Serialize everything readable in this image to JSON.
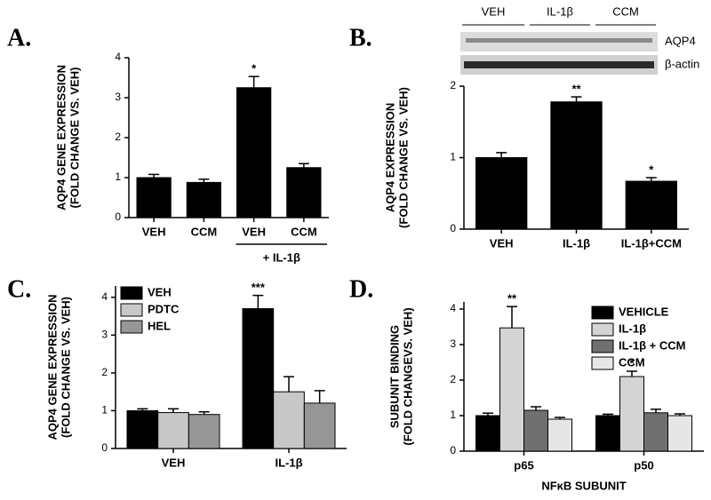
{
  "chart_data": [
    {
      "type": "bar",
      "panel": "A.",
      "ylabel": [
        "AQP4 GENE EXPRESSION",
        "(FOLD CHANGE VS. VEH)"
      ],
      "categories": [
        "VEH",
        "CCM",
        "VEH",
        "CCM"
      ],
      "values": [
        1.0,
        0.88,
        3.25,
        1.25
      ],
      "errors": [
        0.08,
        0.08,
        0.28,
        0.1
      ],
      "significance": [
        null,
        null,
        "*",
        null
      ],
      "group_label": "+ IL-1β",
      "color": "#000000",
      "ylim": [
        0,
        4
      ],
      "yticks": [
        0,
        1,
        2,
        3,
        4
      ]
    },
    {
      "type": "bar",
      "panel": "B.",
      "ylabel": [
        "AQP4 EXPRESSION",
        "(FOLD CHANGE VS. VEH)"
      ],
      "blot": {
        "lanes": [
          "VEH",
          "IL-1β",
          "CCM"
        ],
        "bands": [
          "AQP4",
          "β-actin"
        ]
      },
      "categories": [
        "VEH",
        "IL-1β",
        "IL-1β+CCM"
      ],
      "values": [
        1.0,
        1.78,
        0.67
      ],
      "errors": [
        0.07,
        0.07,
        0.05
      ],
      "significance": [
        null,
        "**",
        "*"
      ],
      "color": "#000000",
      "ylim": [
        0,
        2
      ],
      "yticks": [
        0,
        1,
        2
      ]
    },
    {
      "type": "grouped_bar",
      "panel": "C.",
      "ylabel": [
        "AQP4 GENE EXPRESSION",
        "(FOLD CHANGE VS. VEH)"
      ],
      "categories": [
        "VEH",
        "IL-1β"
      ],
      "series": [
        {
          "name": "VEH",
          "color": "#000000",
          "values": [
            1.0,
            3.7
          ],
          "errors": [
            0.05,
            0.35
          ],
          "significance": [
            null,
            "***"
          ]
        },
        {
          "name": "PDTC",
          "color": "#c8c8c8",
          "values": [
            0.95,
            1.5
          ],
          "errors": [
            0.1,
            0.4
          ],
          "significance": [
            null,
            null
          ]
        },
        {
          "name": "HEL",
          "color": "#969696",
          "values": [
            0.9,
            1.2
          ],
          "errors": [
            0.07,
            0.33
          ],
          "significance": [
            null,
            null
          ]
        }
      ],
      "legend": "top-left",
      "ylim": [
        0,
        4.3
      ],
      "yticks": [
        0,
        1,
        2,
        3,
        4
      ]
    },
    {
      "type": "grouped_bar",
      "panel": "D.",
      "ylabel": [
        "SUBUNIT BINDING",
        "(FOLD CHANGEVS. VEH)"
      ],
      "xlabel": "NFκB SUBUNIT",
      "categories": [
        "p65",
        "p50"
      ],
      "series": [
        {
          "name": "VEHICLE",
          "color": "#000000",
          "values": [
            1.0,
            1.0
          ],
          "errors": [
            0.07,
            0.04
          ],
          "significance": [
            null,
            null
          ]
        },
        {
          "name": "IL-1β",
          "color": "#d4d4d4",
          "values": [
            3.47,
            2.1
          ],
          "errors": [
            0.6,
            0.15
          ],
          "significance": [
            "**",
            "*"
          ]
        },
        {
          "name": "IL-1β + CCM",
          "color": "#707070",
          "values": [
            1.15,
            1.08
          ],
          "errors": [
            0.1,
            0.1
          ],
          "significance": [
            null,
            null
          ]
        },
        {
          "name": "CCM",
          "color": "#e6e6e6",
          "values": [
            0.9,
            1.0
          ],
          "errors": [
            0.05,
            0.05
          ],
          "significance": [
            null,
            null
          ]
        }
      ],
      "legend": "top-right",
      "ylim": [
        0,
        4.2
      ],
      "yticks": [
        0,
        1,
        2,
        3,
        4
      ]
    }
  ]
}
